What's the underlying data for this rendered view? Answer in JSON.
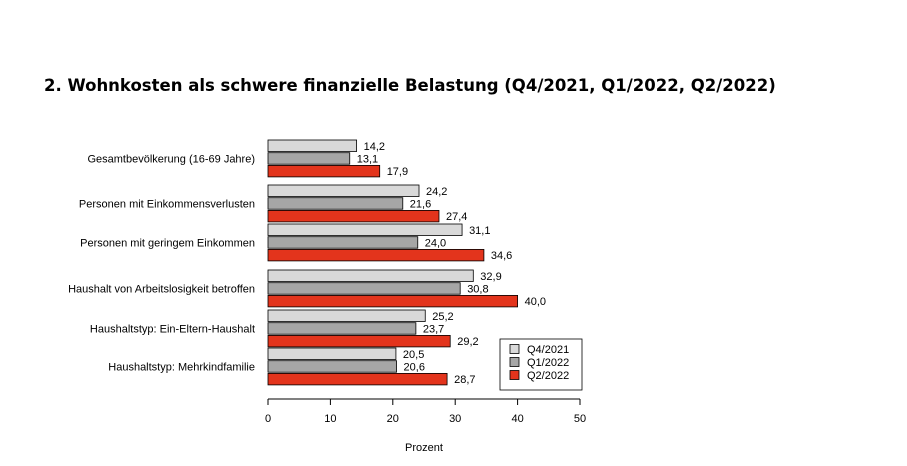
{
  "chart_data": {
    "type": "bar",
    "orientation": "horizontal",
    "title": "2. Wohnkosten als schwere finanzielle Belastung (Q4/2021, Q1/2022, Q2/2022)",
    "xlabel": "Prozent",
    "ylabel": "",
    "xlim": [
      0,
      50
    ],
    "xticks": [
      "0",
      "10",
      "20",
      "30",
      "40",
      "50"
    ],
    "grid": false,
    "legend_position": "bottom-right",
    "categories": [
      "Gesamtbevölkerung (16-69 Jahre)",
      "Personen mit Einkommensverlusten",
      "Personen mit geringem Einkommen",
      "Haushalt von Arbeitslosigkeit betroffen",
      "Haushaltstyp: Ein-Eltern-Haushalt",
      "Haushaltstyp: Mehrkindfamilie"
    ],
    "series": [
      {
        "name": "Q4/2021",
        "color": "#d9d9d9",
        "values": [
          14.2,
          24.2,
          31.1,
          32.9,
          25.2,
          20.5
        ],
        "labels": [
          "14,2",
          "24,2",
          "31,1",
          "32,9",
          "25,2",
          "20,5"
        ]
      },
      {
        "name": "Q1/2022",
        "color": "#a6a6a6",
        "values": [
          13.1,
          21.6,
          24.0,
          30.8,
          23.7,
          20.6
        ],
        "labels": [
          "13,1",
          "21,6",
          "24,0",
          "30,8",
          "23,7",
          "20,6"
        ]
      },
      {
        "name": "Q2/2022",
        "color": "#e3341c",
        "values": [
          17.9,
          27.4,
          34.6,
          40.0,
          29.2,
          28.7
        ],
        "labels": [
          "17,9",
          "27,4",
          "34,6",
          "40,0",
          "29,2",
          "28,7"
        ]
      }
    ]
  }
}
